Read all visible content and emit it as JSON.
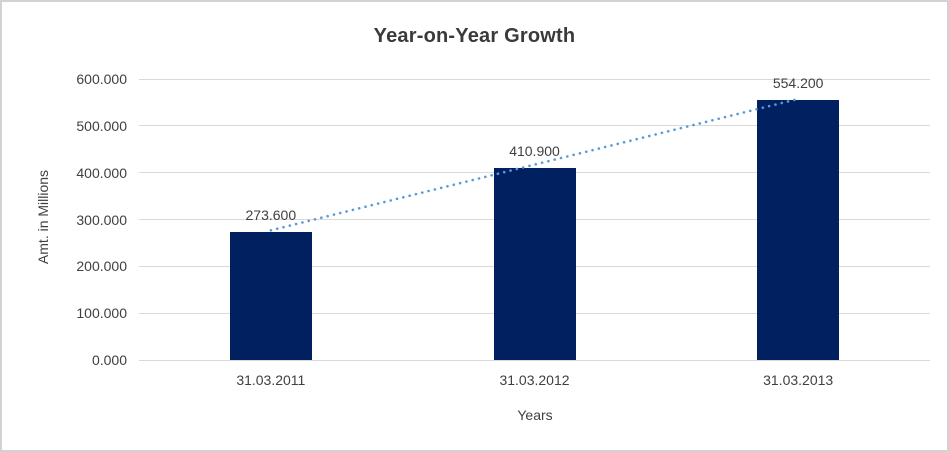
{
  "frame": {
    "background": "#ffffff",
    "border_color": "#d2d2d2"
  },
  "chart_data": {
    "type": "bar",
    "title": "Year-on-Year Growth",
    "xlabel": "Years",
    "ylabel": "Amt. in Millions",
    "categories": [
      "31.03.2011",
      "31.03.2012",
      "31.03.2013"
    ],
    "values": [
      273.6,
      410.9,
      554.2
    ],
    "value_labels": [
      "273.600",
      "410.900",
      "554.200"
    ],
    "y_ticks": [
      "600.000",
      "500.000",
      "400.000",
      "300.000",
      "200.000",
      "100.000",
      "0.000"
    ],
    "ylim": [
      0,
      600
    ],
    "grid": true,
    "legend": "none",
    "bar_color": "#002060",
    "gridline_color": "#d9d9d9",
    "text_color": "#404040",
    "title_color": "#3a3a3a",
    "trendline": {
      "type": "linear",
      "style": "dotted",
      "color": "#5b9bd5"
    }
  }
}
